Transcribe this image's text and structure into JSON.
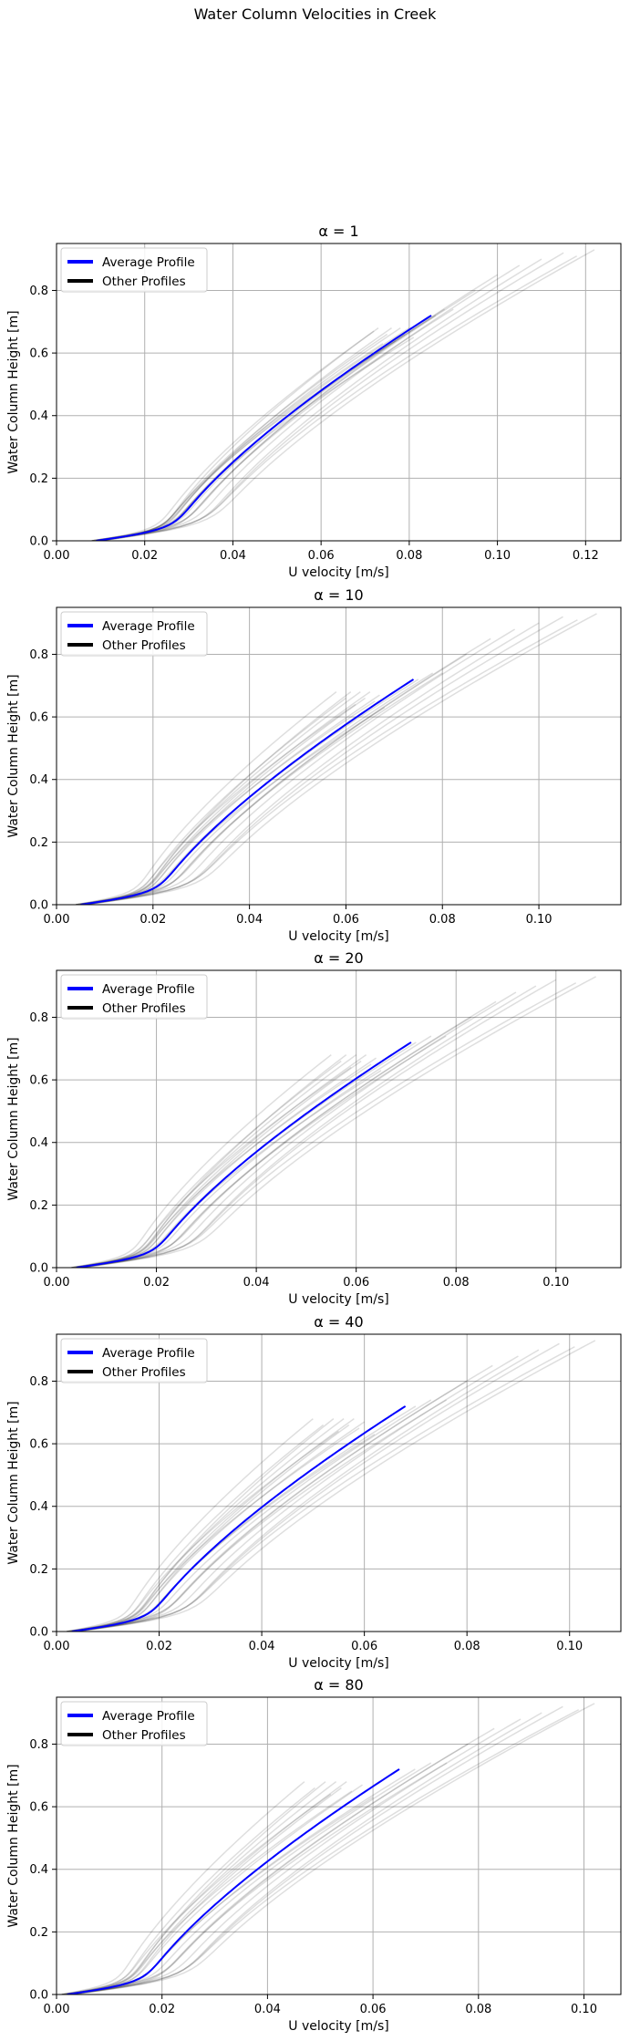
{
  "title": "Water Column Velocities in Creek",
  "chart_data": [
    {
      "type": "line",
      "title": "α = 1",
      "xlabel": "U velocity [m/s]",
      "ylabel": "Water Column Height [m]",
      "xlim": [
        0.0,
        0.128
      ],
      "ylim": [
        0.0,
        0.95
      ],
      "xticks": [
        "0.00",
        "0.02",
        "0.04",
        "0.06",
        "0.08",
        "0.10",
        "0.12"
      ],
      "yticks": [
        "0.0",
        "0.2",
        "0.4",
        "0.6",
        "0.8"
      ],
      "grid": true,
      "legend": {
        "position": "upper-left",
        "entries": [
          {
            "label": "Average Profile",
            "color": "#0000ff"
          },
          {
            "label": "Other Profiles",
            "color": "#000000"
          }
        ]
      },
      "average_profile": {
        "name": "Average Profile",
        "color": "#0000ff",
        "u0": 0.009,
        "umax": 0.085,
        "height": 0.72
      },
      "other_profiles": {
        "name": "Other Profiles",
        "color": "#000000",
        "opacity": 0.13,
        "u0": [
          0.008,
          0.009,
          0.01,
          0.008,
          0.009,
          0.01,
          0.008,
          0.009,
          0.01,
          0.009,
          0.008,
          0.009,
          0.01,
          0.009,
          0.008,
          0.009,
          0.01,
          0.009,
          0.008,
          0.009
        ],
        "umax": [
          0.073,
          0.075,
          0.076,
          0.077,
          0.078,
          0.079,
          0.08,
          0.081,
          0.072,
          0.074,
          0.086,
          0.088,
          0.09,
          0.095,
          0.1,
          0.105,
          0.11,
          0.115,
          0.118,
          0.122
        ],
        "height": [
          0.68,
          0.66,
          0.68,
          0.64,
          0.68,
          0.66,
          0.68,
          0.65,
          0.67,
          0.63,
          0.72,
          0.74,
          0.74,
          0.8,
          0.85,
          0.88,
          0.9,
          0.92,
          0.91,
          0.93
        ]
      }
    },
    {
      "type": "line",
      "title": "α = 10",
      "xlabel": "U velocity [m/s]",
      "ylabel": "Water Column Height [m]",
      "xlim": [
        0.0,
        0.117
      ],
      "ylim": [
        0.0,
        0.95
      ],
      "xticks": [
        "0.00",
        "0.02",
        "0.04",
        "0.06",
        "0.08",
        "0.10"
      ],
      "yticks": [
        "0.0",
        "0.2",
        "0.4",
        "0.6",
        "0.8"
      ],
      "grid": true,
      "legend": {
        "position": "upper-left",
        "entries": [
          {
            "label": "Average Profile",
            "color": "#0000ff"
          },
          {
            "label": "Other Profiles",
            "color": "#000000"
          }
        ]
      },
      "average_profile": {
        "name": "Average Profile",
        "color": "#0000ff",
        "u0": 0.005,
        "umax": 0.074,
        "height": 0.72
      },
      "other_profiles": {
        "name": "Other Profiles",
        "color": "#000000",
        "opacity": 0.13,
        "u0": [
          0.004,
          0.005,
          0.006,
          0.004,
          0.005,
          0.006,
          0.005,
          0.004,
          0.005,
          0.006,
          0.004,
          0.005,
          0.006,
          0.005,
          0.004,
          0.005,
          0.006,
          0.005,
          0.004,
          0.005
        ],
        "umax": [
          0.058,
          0.06,
          0.061,
          0.062,
          0.063,
          0.064,
          0.065,
          0.066,
          0.067,
          0.068,
          0.075,
          0.078,
          0.08,
          0.085,
          0.09,
          0.095,
          0.1,
          0.105,
          0.108,
          0.112
        ],
        "height": [
          0.68,
          0.66,
          0.68,
          0.64,
          0.68,
          0.66,
          0.68,
          0.65,
          0.67,
          0.63,
          0.72,
          0.74,
          0.74,
          0.8,
          0.85,
          0.88,
          0.9,
          0.92,
          0.91,
          0.93
        ]
      }
    },
    {
      "type": "line",
      "title": "α = 20",
      "xlabel": "U velocity [m/s]",
      "ylabel": "Water Column Height [m]",
      "xlim": [
        0.0,
        0.113
      ],
      "ylim": [
        0.0,
        0.95
      ],
      "xticks": [
        "0.00",
        "0.02",
        "0.04",
        "0.06",
        "0.08",
        "0.10"
      ],
      "yticks": [
        "0.0",
        "0.2",
        "0.4",
        "0.6",
        "0.8"
      ],
      "grid": true,
      "legend": {
        "position": "upper-left",
        "entries": [
          {
            "label": "Average Profile",
            "color": "#0000ff"
          },
          {
            "label": "Other Profiles",
            "color": "#000000"
          }
        ]
      },
      "average_profile": {
        "name": "Average Profile",
        "color": "#0000ff",
        "u0": 0.004,
        "umax": 0.071,
        "height": 0.72
      },
      "other_profiles": {
        "name": "Other Profiles",
        "color": "#000000",
        "opacity": 0.13,
        "u0": [
          0.003,
          0.004,
          0.005,
          0.003,
          0.004,
          0.005,
          0.004,
          0.003,
          0.004,
          0.005,
          0.003,
          0.004,
          0.005,
          0.004,
          0.003,
          0.004,
          0.005,
          0.004,
          0.003,
          0.004
        ],
        "umax": [
          0.055,
          0.057,
          0.058,
          0.059,
          0.06,
          0.061,
          0.062,
          0.063,
          0.064,
          0.065,
          0.072,
          0.075,
          0.078,
          0.083,
          0.088,
          0.092,
          0.096,
          0.1,
          0.104,
          0.108
        ],
        "height": [
          0.68,
          0.66,
          0.68,
          0.64,
          0.68,
          0.66,
          0.68,
          0.65,
          0.67,
          0.63,
          0.72,
          0.74,
          0.74,
          0.8,
          0.85,
          0.88,
          0.9,
          0.92,
          0.91,
          0.93
        ]
      }
    },
    {
      "type": "line",
      "title": "α = 40",
      "xlabel": "U velocity [m/s]",
      "ylabel": "Water Column Height [m]",
      "xlim": [
        0.0,
        0.11
      ],
      "ylim": [
        0.0,
        0.95
      ],
      "xticks": [
        "0.00",
        "0.02",
        "0.04",
        "0.06",
        "0.08",
        "0.10"
      ],
      "yticks": [
        "0.0",
        "0.2",
        "0.4",
        "0.6",
        "0.8"
      ],
      "grid": true,
      "legend": {
        "position": "upper-left",
        "entries": [
          {
            "label": "Average Profile",
            "color": "#0000ff"
          },
          {
            "label": "Other Profiles",
            "color": "#000000"
          }
        ]
      },
      "average_profile": {
        "name": "Average Profile",
        "color": "#0000ff",
        "u0": 0.003,
        "umax": 0.068,
        "height": 0.72
      },
      "other_profiles": {
        "name": "Other Profiles",
        "color": "#000000",
        "opacity": 0.13,
        "u0": [
          0.002,
          0.003,
          0.004,
          0.002,
          0.003,
          0.004,
          0.003,
          0.002,
          0.003,
          0.004,
          0.002,
          0.003,
          0.004,
          0.003,
          0.002,
          0.003,
          0.004,
          0.003,
          0.002,
          0.003
        ],
        "umax": [
          0.05,
          0.052,
          0.054,
          0.055,
          0.056,
          0.057,
          0.058,
          0.059,
          0.06,
          0.062,
          0.07,
          0.073,
          0.076,
          0.08,
          0.085,
          0.09,
          0.094,
          0.098,
          0.101,
          0.105
        ],
        "height": [
          0.68,
          0.66,
          0.68,
          0.64,
          0.68,
          0.66,
          0.68,
          0.65,
          0.67,
          0.63,
          0.72,
          0.74,
          0.74,
          0.8,
          0.85,
          0.88,
          0.9,
          0.92,
          0.91,
          0.93
        ]
      }
    },
    {
      "type": "line",
      "title": "α = 80",
      "xlabel": "U velocity [m/s]",
      "ylabel": "Water Column Height [m]",
      "xlim": [
        0.0,
        0.107
      ],
      "ylim": [
        0.0,
        0.95
      ],
      "xticks": [
        "0.00",
        "0.02",
        "0.04",
        "0.06",
        "0.08",
        "0.10"
      ],
      "yticks": [
        "0.0",
        "0.2",
        "0.4",
        "0.6",
        "0.8"
      ],
      "grid": true,
      "legend": {
        "position": "upper-left",
        "entries": [
          {
            "label": "Average Profile",
            "color": "#0000ff"
          },
          {
            "label": "Other Profiles",
            "color": "#000000"
          }
        ]
      },
      "average_profile": {
        "name": "Average Profile",
        "color": "#0000ff",
        "u0": 0.002,
        "umax": 0.065,
        "height": 0.72
      },
      "other_profiles": {
        "name": "Other Profiles",
        "color": "#000000",
        "opacity": 0.13,
        "u0": [
          0.001,
          0.002,
          0.003,
          0.001,
          0.002,
          0.003,
          0.002,
          0.001,
          0.002,
          0.003,
          0.001,
          0.002,
          0.003,
          0.002,
          0.001,
          0.002,
          0.003,
          0.002,
          0.001,
          0.002
        ],
        "umax": [
          0.047,
          0.049,
          0.051,
          0.052,
          0.053,
          0.054,
          0.055,
          0.056,
          0.058,
          0.06,
          0.068,
          0.071,
          0.074,
          0.078,
          0.083,
          0.088,
          0.092,
          0.096,
          0.099,
          0.102
        ],
        "height": [
          0.68,
          0.66,
          0.68,
          0.64,
          0.68,
          0.66,
          0.68,
          0.65,
          0.67,
          0.63,
          0.72,
          0.74,
          0.74,
          0.8,
          0.85,
          0.88,
          0.9,
          0.92,
          0.91,
          0.93
        ]
      }
    }
  ]
}
